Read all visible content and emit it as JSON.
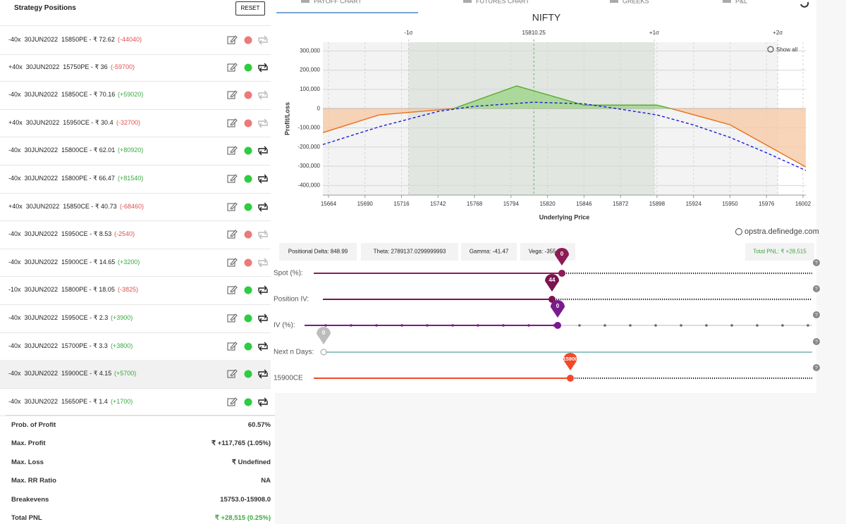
{
  "left_panel": {
    "title": "Strategy Positions",
    "reset": "RESET",
    "positions": [
      {
        "text": "-40x  30JUN2022  15850PE - ₹ 72.62",
        "pnl": "(-44040)",
        "active": false
      },
      {
        "text": "+40x  30JUN2022  15750PE - ₹ 36",
        "pnl": "(-59700)",
        "active": true
      },
      {
        "text": "-40x  30JUN2022  15850CE - ₹ 70.16",
        "pnl": "(+59020)",
        "active": false
      },
      {
        "text": "+40x  30JUN2022  15950CE - ₹ 30.4",
        "pnl": "(-32700)",
        "active": false
      },
      {
        "text": "-40x  30JUN2022  15800CE - ₹ 62.01",
        "pnl": "(+80920)",
        "active": true
      },
      {
        "text": "-40x  30JUN2022  15800PE - ₹ 66.47",
        "pnl": "(+81540)",
        "active": true
      },
      {
        "text": "+40x  30JUN2022  15850CE - ₹ 40.73",
        "pnl": "(-68460)",
        "active": true
      },
      {
        "text": "-40x  30JUN2022  15950CE - ₹ 8.53",
        "pnl": "(-2540)",
        "active": false
      },
      {
        "text": "-40x  30JUN2022  15900CE - ₹ 14.65",
        "pnl": "(+3200)",
        "active": false
      },
      {
        "text": "-10x  30JUN2022  15800PE - ₹ 18.05",
        "pnl": "(-3825)",
        "active": true
      },
      {
        "text": "-40x  30JUN2022  15950CE - ₹ 2.3",
        "pnl": "(+3900)",
        "active": true
      },
      {
        "text": "-40x  30JUN2022  15700PE - ₹ 3.3",
        "pnl": "(+3800)",
        "active": true
      },
      {
        "text": "-40x  30JUN2022  15900CE - ₹ 4.15",
        "pnl": "(+5700)",
        "active": true,
        "selected": true
      },
      {
        "text": "-40x  30JUN2022  15650PE - ₹ 1.4",
        "pnl": "(+1700)",
        "active": true
      }
    ],
    "stats": [
      {
        "label": "Prob. of Profit",
        "value": "60.57%"
      },
      {
        "label": "Max. Profit",
        "value": "₹ +117,765 (1.05%)"
      },
      {
        "label": "Max. Loss",
        "value": "₹ Undefined"
      },
      {
        "label": "Max. RR Ratio",
        "value": "NA"
      },
      {
        "label": "Breakevens",
        "value": "15753.0-15908.0"
      },
      {
        "label": "Total PNL",
        "value": "₹ +28,515 (0.25%)",
        "color": "#3aa843"
      }
    ]
  },
  "tabs": [
    "PAYOFF CHART",
    "FUTURES CHART",
    "GREEKS",
    "P&L"
  ],
  "chart_data": {
    "type": "line",
    "title": "NIFTY",
    "x_label": "Underlying Price",
    "y_label": "Profit/Loss",
    "show_all": "Show all",
    "credit": "opstra.definedge.com",
    "series": [
      {
        "color": "#e8711c",
        "fill_positive": "#9fd48a",
        "fill_negative": "#f6c9a6",
        "positive_color": "#5aac2e",
        "x": [
          15660,
          15700,
          15753,
          15798,
          15846,
          15898,
          15908,
          15950,
          15976,
          16004
        ],
        "values": [
          -125000,
          -33000,
          0,
          117765,
          18000,
          18000,
          0,
          -84000,
          -190000,
          -304000
        ]
      },
      {
        "color": "#1a1adb",
        "dash": true,
        "x": [
          15660,
          15700,
          15742,
          15768,
          15810,
          15846,
          15872,
          15898,
          15924,
          15950,
          15976,
          16004
        ],
        "values": [
          -187000,
          -95000,
          -15000,
          12000,
          33000,
          25000,
          -3000,
          -33000,
          -85000,
          -150000,
          -230000,
          -322000
        ]
      }
    ],
    "xlim": [
      15660,
      16004
    ],
    "xticks": [
      15664,
      15690,
      15716,
      15742,
      15768,
      15794,
      15820,
      15846,
      15872,
      15898,
      15924,
      15950,
      15976,
      16002
    ],
    "ylim": [
      -450000,
      345000
    ],
    "yticks": [
      {
        "value": 300000,
        "label": "300,000"
      },
      {
        "value": 200000,
        "label": "200,000"
      },
      {
        "value": 100000,
        "label": "100,000"
      },
      0,
      {
        "value": -100000,
        "label": "-100,000"
      },
      {
        "value": -200000,
        "label": "-200,000"
      },
      {
        "value": -300000,
        "label": "-300,000"
      },
      {
        "value": -400000,
        "label": "-400,000"
      }
    ],
    "top_ticks": [
      {
        "value": 15721,
        "label": "-1σ"
      },
      15810.25,
      {
        "value": 15896,
        "label": "+1σ"
      },
      {
        "value": 15984,
        "label": "+2σ"
      }
    ],
    "grid": true
  },
  "greeks": [
    "Positional Delta: 848.99",
    "Theta: 2789137.0299999993",
    "Gamma: -41.47",
    "Vega: -3554.62"
  ],
  "total_pnl": "Total PNL: ₹ +28,515",
  "sliders": [
    {
      "label": "Spot (%):",
      "value": 0,
      "color": "#8e1b56"
    },
    {
      "label": "Position IV:",
      "value": 44,
      "color": "#7b1450"
    },
    {
      "label": "IV (%):",
      "value": 0,
      "color": "#7b1a8e"
    },
    {
      "label": "Next n Days:",
      "value": 0,
      "color": "#bdbdbd"
    },
    {
      "label": "15900CE",
      "value": 15900,
      "color": "#f04a2a"
    }
  ]
}
